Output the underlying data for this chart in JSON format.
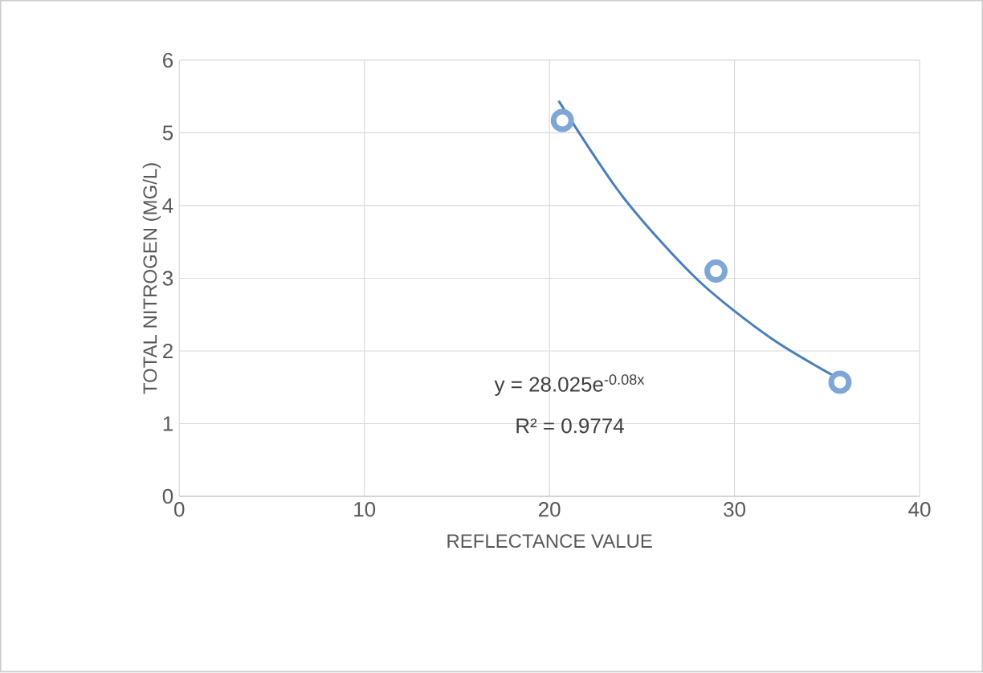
{
  "chart_data": {
    "type": "scatter",
    "xlabel": "REFLECTANCE VALUE",
    "ylabel": "TOTAL NITROGEN (MG/L)",
    "xlim": [
      0,
      40
    ],
    "ylim": [
      0,
      6
    ],
    "xticks": [
      0,
      10,
      20,
      30,
      40
    ],
    "yticks": [
      0,
      1,
      2,
      3,
      4,
      5,
      6
    ],
    "grid": true,
    "annotations": [
      "y = 28.025e$^{-0.08x}$",
      "R² = 0.9774"
    ],
    "series": [
      {
        "color": "#7fa7d6",
        "marker": "circle",
        "x": [
          20.7,
          29,
          35.7
        ],
        "values": [
          5.17,
          3.1,
          1.57
        ]
      },
      {
        "type": "line",
        "color": "#4a7ebb",
        "marker": "none",
        "x": [
          20.5,
          24,
          28,
          32,
          35.7
        ],
        "values": [
          5.44,
          4.11,
          2.98,
          2.17,
          1.61
        ]
      }
    ]
  }
}
